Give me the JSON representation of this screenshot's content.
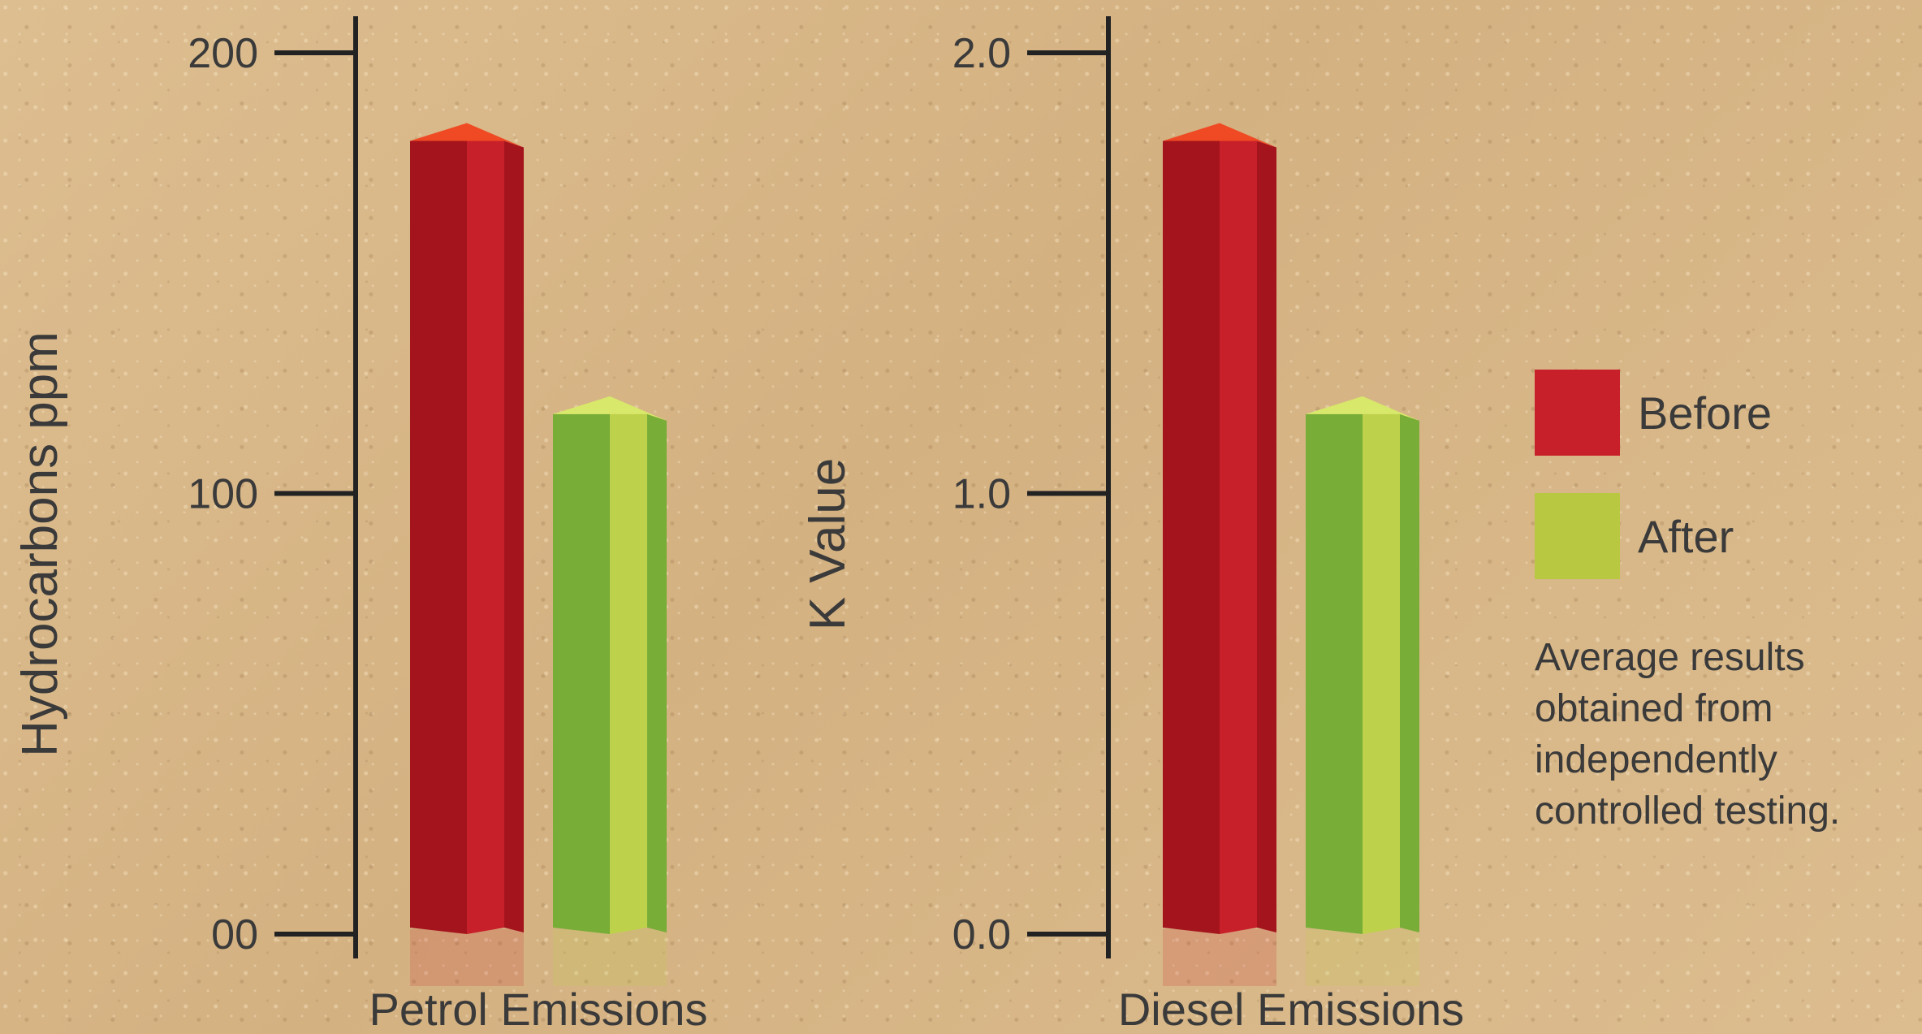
{
  "chart_data": [
    {
      "type": "bar",
      "categories": [
        "Petrol Emissions"
      ],
      "series": [
        {
          "name": "Before",
          "values": [
            180
          ]
        },
        {
          "name": "After",
          "values": [
            118
          ]
        }
      ],
      "ylabel": "Hydrocarbons ppm",
      "yticks": [
        "00",
        "100",
        "200"
      ],
      "ylim": [
        0,
        200
      ]
    },
    {
      "type": "bar",
      "categories": [
        "Diesel Emissions"
      ],
      "series": [
        {
          "name": "Before",
          "values": [
            1.8
          ]
        },
        {
          "name": "After",
          "values": [
            1.18
          ]
        }
      ],
      "ylabel": "K Value",
      "yticks": [
        "0.0",
        "1.0",
        "2.0"
      ],
      "ylim": [
        0,
        2.0
      ]
    }
  ],
  "legend": {
    "items": [
      {
        "label": "Before",
        "color": "#c8202a"
      },
      {
        "label": "After",
        "color": "#b8c840"
      }
    ]
  },
  "note": "Average results obtained from independently controlled testing.",
  "colors": {
    "before_front": "#c8202a",
    "before_dark": "#a4141c",
    "before_top": "#ef4a24",
    "after_front": "#bdd24a",
    "after_dark": "#78ad38",
    "after_top": "#d8e86a",
    "axis": "#222222",
    "text": "#3a3a3a"
  }
}
